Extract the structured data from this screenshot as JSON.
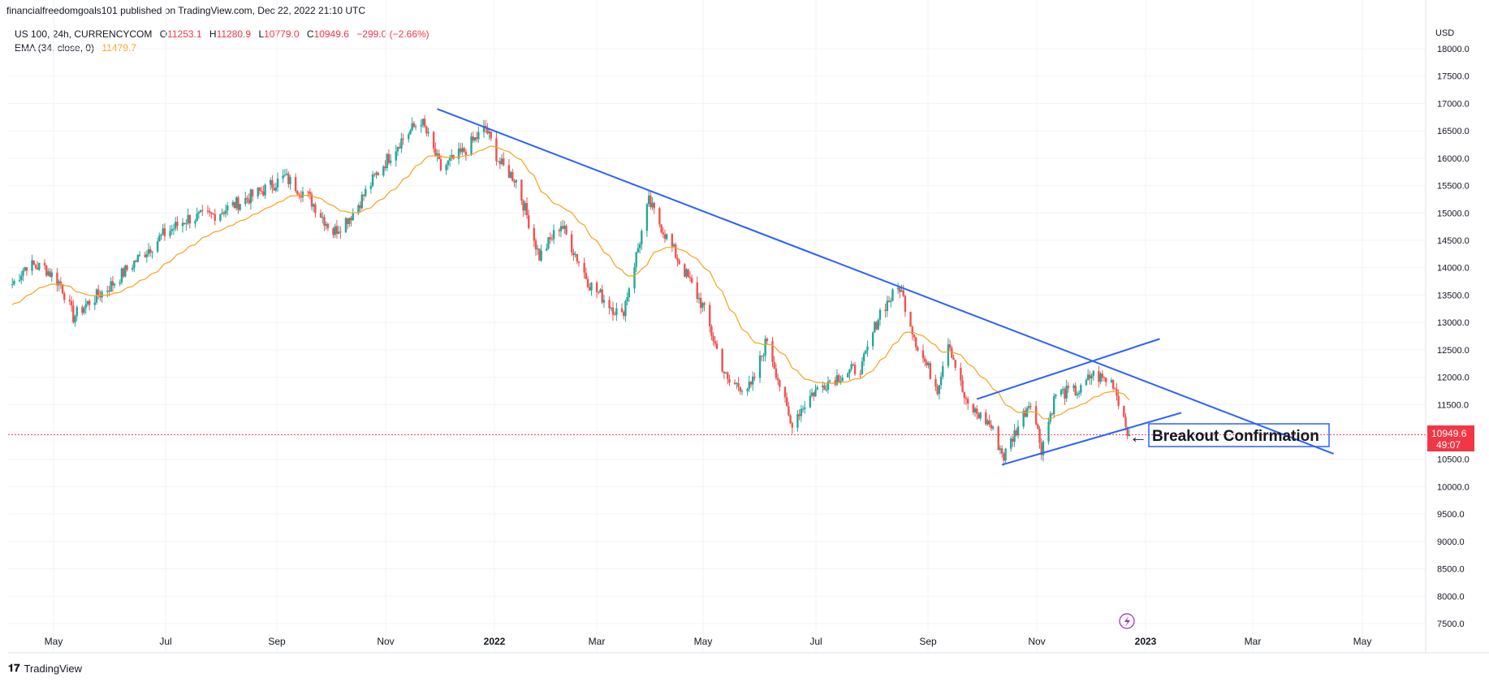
{
  "header": {
    "publisher": "financialfreedomgoals101 published on TradingView.com, Dec 22, 2022 21:10 UTC"
  },
  "legend": {
    "symbol": "US 100, 24h, CURRENCYCOM",
    "open_label": "O",
    "open": "11253.1",
    "high_label": "H",
    "high": "11280.9",
    "low_label": "L",
    "low": "10779.0",
    "close_label": "C",
    "close": "10949.6",
    "change": "−299.0 (−2.66%)",
    "ema_label": "EMA (34, close, 0)",
    "ema_value": "11479.7"
  },
  "price_badge": {
    "price": "10949.6",
    "timer": "49:07"
  },
  "annotation": {
    "text": "Breakout Confirmation",
    "arrow": "left-arrow-icon"
  },
  "footer": {
    "brand": "TradingView"
  },
  "colors": {
    "up": "#26a69a",
    "down": "#ef5350",
    "ema": "#f7a21b",
    "trendline": "#2962ff",
    "price_line": "#f23645",
    "grid": "#f0f3fa"
  },
  "chart_data": {
    "type": "candlestick",
    "currency": "USD",
    "yaxis_ticks": [
      "18000.0",
      "17500.0",
      "17000.0",
      "16500.0",
      "16000.0",
      "15500.0",
      "15000.0",
      "14500.0",
      "14000.0",
      "13500.0",
      "13000.0",
      "12500.0",
      "12000.0",
      "11500.0",
      "11000.0",
      "10500.0",
      "10000.0",
      "9500.0",
      "9000.0",
      "8500.0",
      "8000.0",
      "7500.0"
    ],
    "xaxis_ticks": [
      "May",
      "Jul",
      "Sep",
      "Nov",
      "2022",
      "Mar",
      "May",
      "Jul",
      "Sep",
      "Nov",
      "2023",
      "Mar",
      "May"
    ],
    "ylim": [
      7500,
      18000
    ],
    "last_price": 10949.6,
    "ema_period": 34,
    "price_path": [
      [
        "2021-04-08",
        13700
      ],
      [
        "2021-04-16",
        14050
      ],
      [
        "2021-04-26",
        14000
      ],
      [
        "2021-05-05",
        13700
      ],
      [
        "2021-05-12",
        13100
      ],
      [
        "2021-05-20",
        13350
      ],
      [
        "2021-06-01",
        13650
      ],
      [
        "2021-06-15",
        14100
      ],
      [
        "2021-07-01",
        14600
      ],
      [
        "2021-07-15",
        14900
      ],
      [
        "2021-07-28",
        14950
      ],
      [
        "2021-08-10",
        15150
      ],
      [
        "2021-08-25",
        15400
      ],
      [
        "2021-09-07",
        15650
      ],
      [
        "2021-09-20",
        15300
      ],
      [
        "2021-10-04",
        14650
      ],
      [
        "2021-10-15",
        15000
      ],
      [
        "2021-10-28",
        15700
      ],
      [
        "2021-11-10",
        16300
      ],
      [
        "2021-11-22",
        16700
      ],
      [
        "2021-12-03",
        15800
      ],
      [
        "2021-12-15",
        16100
      ],
      [
        "2021-12-28",
        16550
      ],
      [
        "2022-01-05",
        15900
      ],
      [
        "2022-01-14",
        15600
      ],
      [
        "2022-01-27",
        14200
      ],
      [
        "2022-02-08",
        14800
      ],
      [
        "2022-02-24",
        13700
      ],
      [
        "2022-03-14",
        13100
      ],
      [
        "2022-03-29",
        15200
      ],
      [
        "2022-04-12",
        14300
      ],
      [
        "2022-04-28",
        13300
      ],
      [
        "2022-05-12",
        11900
      ],
      [
        "2022-05-25",
        11800
      ],
      [
        "2022-06-03",
        12700
      ],
      [
        "2022-06-16",
        11150
      ],
      [
        "2022-06-28",
        11700
      ],
      [
        "2022-07-08",
        11950
      ],
      [
        "2022-07-26",
        12200
      ],
      [
        "2022-08-05",
        13200
      ],
      [
        "2022-08-16",
        13650
      ],
      [
        "2022-08-26",
        12550
      ],
      [
        "2022-09-06",
        11800
      ],
      [
        "2022-09-12",
        12700
      ],
      [
        "2022-09-22",
        11500
      ],
      [
        "2022-10-05",
        11150
      ],
      [
        "2022-10-13",
        10550
      ],
      [
        "2022-10-28",
        11600
      ],
      [
        "2022-11-03",
        10700
      ],
      [
        "2022-11-11",
        11700
      ],
      [
        "2022-11-25",
        11750
      ],
      [
        "2022-12-01",
        12050
      ],
      [
        "2022-12-13",
        11900
      ],
      [
        "2022-12-22",
        10950
      ]
    ],
    "trendlines": [
      {
        "name": "descending resistance",
        "from": [
          "2021-12-01",
          16900
        ],
        "to": [
          "2023-04-15",
          10600
        ]
      },
      {
        "name": "channel upper",
        "from": [
          "2022-09-28",
          11600
        ],
        "to": [
          "2023-01-08",
          12700
        ]
      },
      {
        "name": "channel lower",
        "from": [
          "2022-10-12",
          10400
        ],
        "to": [
          "2023-01-20",
          11350
        ]
      }
    ]
  }
}
